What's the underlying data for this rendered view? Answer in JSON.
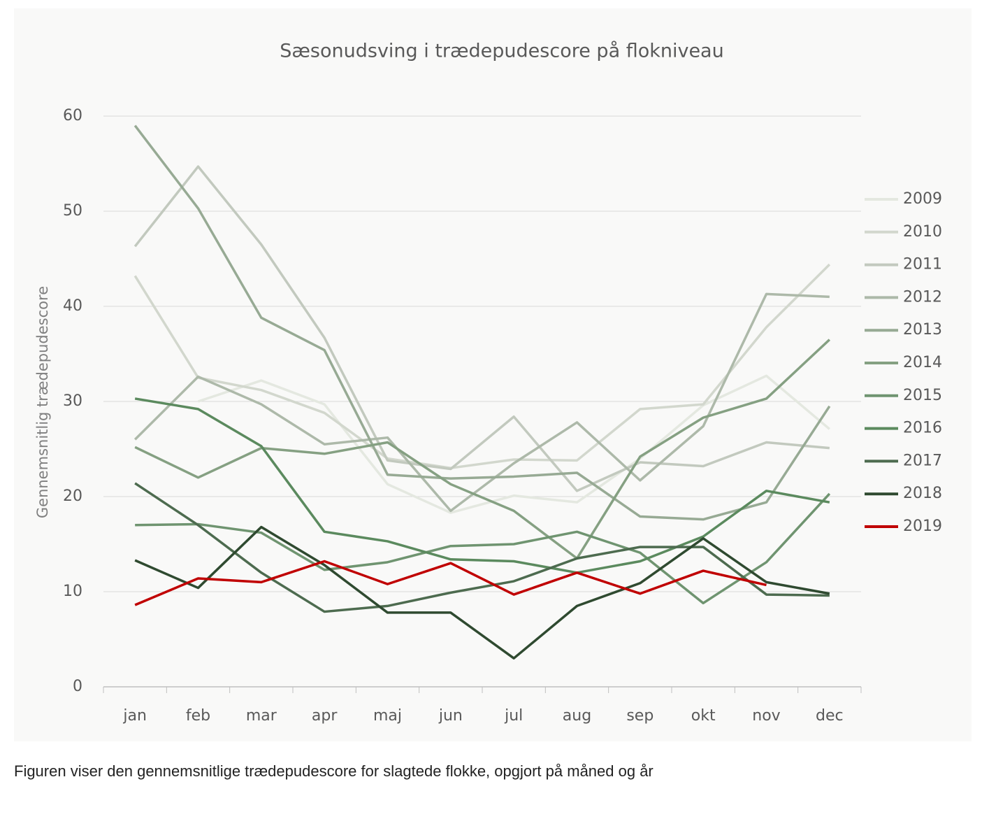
{
  "chart_data": {
    "type": "line",
    "title": "Sæsonudsving i trædepudescore på flokniveau",
    "y_label": "Gennemsnitlig trædepudescore",
    "categories": [
      "jan",
      "feb",
      "mar",
      "apr",
      "maj",
      "jun",
      "jul",
      "aug",
      "sep",
      "okt",
      "nov",
      "dec"
    ],
    "ylim": [
      0,
      60
    ],
    "yticks": [
      0,
      10,
      20,
      30,
      40,
      50,
      60
    ],
    "grid": true,
    "legend": "right",
    "series": [
      {
        "name": "2009",
        "color": "#e4e8e0",
        "values": [
          null,
          30,
          32.2,
          29.7,
          21.3,
          18.3,
          20.1,
          19.4,
          24,
          29.6,
          32.7,
          27.1
        ]
      },
      {
        "name": "2010",
        "color": "#d2d7cd",
        "values": [
          43.2,
          32.5,
          31.2,
          28.8,
          24,
          23,
          23.9,
          23.8,
          29.2,
          29.7,
          37.8,
          44.4
        ]
      },
      {
        "name": "2011",
        "color": "#c2c9be",
        "values": [
          46.3,
          54.7,
          46.5,
          36.7,
          23.8,
          22.9,
          28.4,
          20.6,
          23.6,
          23.2,
          25.7,
          25.1
        ]
      },
      {
        "name": "2012",
        "color": "#adb9a9",
        "values": [
          26,
          32.6,
          29.7,
          25.5,
          26.2,
          18.5,
          23.5,
          27.8,
          21.7,
          27.4,
          41.3,
          41
        ]
      },
      {
        "name": "2013",
        "color": "#97aa94",
        "values": [
          59,
          50.3,
          38.8,
          35.4,
          22.3,
          21.9,
          22.1,
          22.5,
          17.9,
          17.6,
          19.4,
          29.5
        ]
      },
      {
        "name": "2014",
        "color": "#85a082",
        "values": [
          25.2,
          22,
          25.1,
          24.5,
          25.7,
          21.3,
          18.5,
          13.5,
          24.2,
          28.3,
          30.3,
          36.5
        ]
      },
      {
        "name": "2015",
        "color": "#6f9470",
        "values": [
          17,
          17.1,
          16.2,
          12.3,
          13.1,
          14.8,
          15,
          16.3,
          14.1,
          8.8,
          13.1,
          20.3
        ]
      },
      {
        "name": "2016",
        "color": "#5b8a5e",
        "values": [
          30.3,
          29.2,
          25.3,
          16.3,
          15.3,
          13.4,
          13.2,
          12,
          13.2,
          15.8,
          20.6,
          19.4
        ]
      },
      {
        "name": "2017",
        "color": "#4d6b4f",
        "values": [
          21.4,
          17,
          12,
          7.9,
          8.5,
          9.9,
          11.1,
          13.5,
          14.7,
          14.7,
          9.7,
          9.6
        ]
      },
      {
        "name": "2018",
        "color": "#2f4a30",
        "values": [
          13.3,
          10.4,
          16.8,
          12.8,
          7.8,
          7.8,
          3,
          8.5,
          10.9,
          15.6,
          11,
          9.8
        ]
      },
      {
        "name": "2019",
        "color": "#c00000",
        "values": [
          8.6,
          11.4,
          11,
          13.2,
          10.8,
          13,
          9.7,
          12,
          9.8,
          12.2,
          10.7,
          null
        ]
      }
    ]
  },
  "caption": "Figuren viser den gennemsnitlige trædepudescore for slagtede flokke, opgjort på måned og år"
}
